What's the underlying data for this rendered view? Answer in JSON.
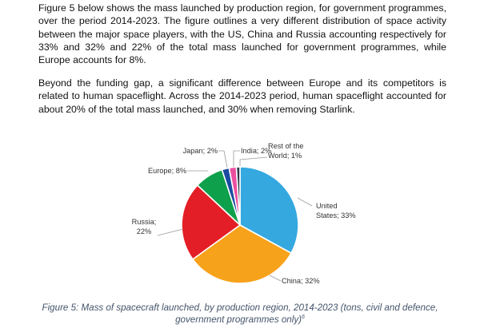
{
  "paragraphs": [
    "Figure 5 below shows the mass launched by production region, for government programmes, over the period 2014-2023. The figure outlines a very different distribution of space activity between the major space players, with the US, China and Russia accounting respectively for 33% and 32% and 22% of the total mass launched for government programmes, while Europe accounts for 8%.",
    "Beyond the funding gap, a significant difference between Europe and its competitors is related to human spaceflight. Across the 2014-2023 period, human spaceflight accounted for about 20% of the total mass launched, and 30% when removing Starlink."
  ],
  "caption": {
    "text": "Figure 5: Mass of spacecraft launched, by production region, 2014-2023 (tons, civil and defence, government programmes only)",
    "footnote": "6"
  },
  "chart_data": {
    "type": "pie",
    "start": "top, clockwise",
    "slices": [
      {
        "name": "United States",
        "value": 33,
        "color": "#35A8E0",
        "label_lines": [
          "United",
          "States; 33%"
        ]
      },
      {
        "name": "China",
        "value": 32,
        "color": "#F7A21B",
        "label_lines": [
          "China; 32%"
        ]
      },
      {
        "name": "Russia",
        "value": 22,
        "color": "#E41E26",
        "label_lines": [
          "Russia;",
          "22%"
        ]
      },
      {
        "name": "Europe",
        "value": 8,
        "color": "#0EA04B",
        "label_lines": [
          "Europe; 8%"
        ]
      },
      {
        "name": "Japan",
        "value": 2,
        "color": "#1B4CA1",
        "label_lines": [
          "Japan; 2%"
        ]
      },
      {
        "name": "India",
        "value": 2,
        "color": "#EC4FA0",
        "label_lines": [
          "India; 2%"
        ]
      },
      {
        "name": "Rest of the World",
        "value": 1,
        "color": "#2F3B4C",
        "label_lines": [
          "Rest of the",
          "World; 1%"
        ]
      }
    ]
  }
}
